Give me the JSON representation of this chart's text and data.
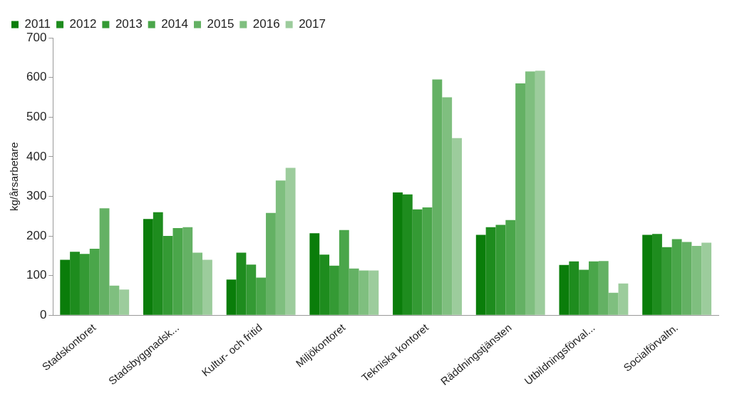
{
  "chart_data": {
    "type": "bar",
    "ylabel": "kg/årsarbetare",
    "categories": [
      "Stadskontoret",
      "Stadsbyggnadsk...",
      "Kultur- och fritid",
      "Miljökontoret",
      "Tekniska kontoret",
      "Räddningstjänsten",
      "Utbildningsförval...",
      "Socialförvaltn."
    ],
    "series": [
      {
        "name": "2011",
        "color": "#0a7d0a",
        "values": [
          140,
          243,
          90,
          207,
          310,
          203,
          127,
          203
        ]
      },
      {
        "name": "2012",
        "color": "#1e8c1e",
        "values": [
          160,
          260,
          158,
          153,
          305,
          222,
          136,
          205
        ]
      },
      {
        "name": "2013",
        "color": "#349a34",
        "values": [
          155,
          200,
          128,
          125,
          267,
          228,
          115,
          172
        ]
      },
      {
        "name": "2014",
        "color": "#4aa64a",
        "values": [
          168,
          220,
          95,
          215,
          272,
          240,
          136,
          192
        ]
      },
      {
        "name": "2015",
        "color": "#64b164",
        "values": [
          270,
          222,
          258,
          118,
          595,
          585,
          137,
          185
        ]
      },
      {
        "name": "2016",
        "color": "#7fbf7f",
        "values": [
          75,
          158,
          340,
          113,
          550,
          615,
          57,
          175
        ]
      },
      {
        "name": "2017",
        "color": "#9ccc9c",
        "values": [
          65,
          140,
          372,
          113,
          447,
          617,
          80,
          183
        ]
      }
    ],
    "ylim": [
      0,
      700
    ],
    "yticks": [
      0,
      100,
      200,
      300,
      400,
      500,
      600,
      700
    ],
    "grid": false,
    "legend": "top left"
  }
}
